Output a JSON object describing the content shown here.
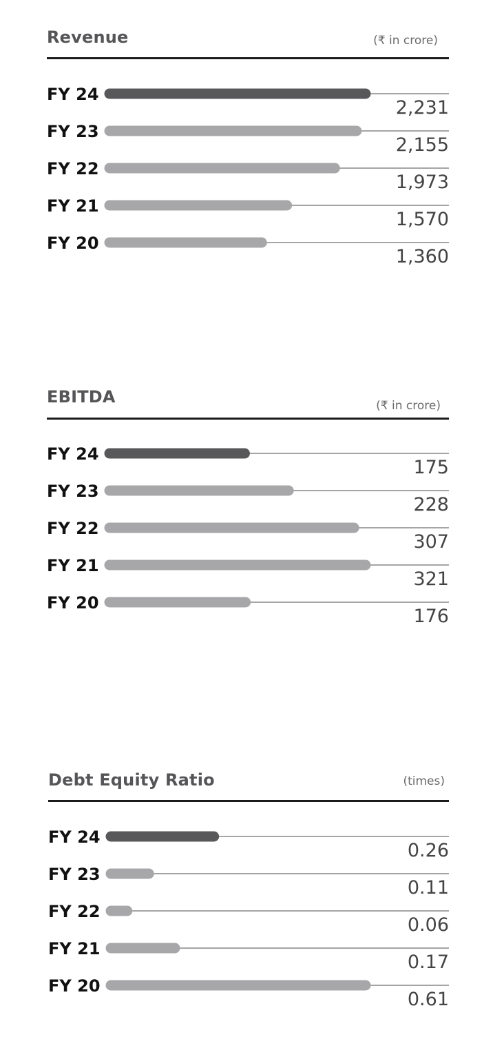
{
  "chart_data": [
    {
      "type": "bar",
      "title": "Revenue",
      "unit": "(₹ in crore)",
      "categories": [
        "FY 24",
        "FY 23",
        "FY 22",
        "FY 21",
        "FY 20"
      ],
      "values": [
        2231,
        2155,
        1973,
        1570,
        1360
      ],
      "value_labels": [
        "2,231",
        "2,155",
        "1,973",
        "1,570",
        "1,360"
      ],
      "highlight_index": 0,
      "xlim": [
        0,
        2231
      ],
      "grid": false,
      "legend": "none"
    },
    {
      "type": "bar",
      "title": "EBITDA",
      "unit": "(₹ in  crore)",
      "categories": [
        "FY 24",
        "FY 23",
        "FY 22",
        "FY 21",
        "FY 20"
      ],
      "values": [
        175,
        228,
        307,
        321,
        176
      ],
      "value_labels": [
        "175",
        "228",
        "307",
        "321",
        "176"
      ],
      "highlight_index": 0,
      "xlim": [
        0,
        321
      ],
      "grid": false,
      "legend": "none"
    },
    {
      "type": "bar",
      "title": "Debt Equity Ratio",
      "unit": "(times)",
      "categories": [
        "FY 24",
        "FY 23",
        "FY 22",
        "FY 21",
        "FY 20"
      ],
      "values": [
        0.26,
        0.11,
        0.06,
        0.17,
        0.61
      ],
      "value_labels": [
        "0.26",
        "0.11",
        "0.06",
        "0.17",
        "0.61"
      ],
      "highlight_index": 0,
      "xlim": [
        0,
        0.61
      ],
      "grid": false,
      "legend": "none"
    }
  ],
  "colors": {
    "highlight_bar": "#58585b",
    "bar": "#a7a7a9",
    "leader_line": "#6f6f6f",
    "rule": "#1b1b1b"
  }
}
